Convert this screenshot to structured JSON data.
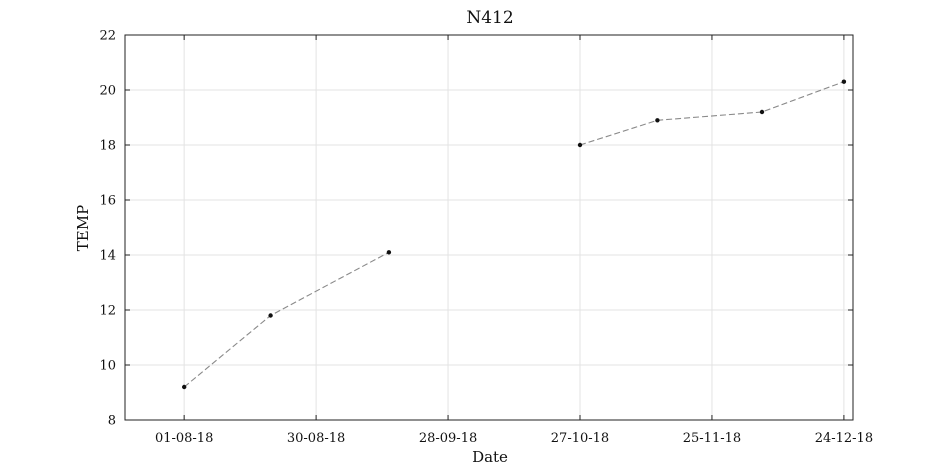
{
  "chart_data": {
    "type": "line",
    "title": "N412",
    "xlabel": "Date",
    "ylabel": "TEMP",
    "x_ticks": [
      "01-08-18",
      "30-08-18",
      "28-09-18",
      "27-10-18",
      "25-11-18",
      "24-12-18"
    ],
    "x_tick_dates": [
      "2018-08-01",
      "2018-08-30",
      "2018-09-28",
      "2018-10-27",
      "2018-11-25",
      "2018-12-24"
    ],
    "y_ticks": [
      8,
      10,
      12,
      14,
      16,
      18,
      20,
      22
    ],
    "xlim": [
      "2018-07-19",
      "2018-12-26"
    ],
    "ylim": [
      8,
      22
    ],
    "grid": true,
    "line_style": "dashed",
    "line_color": "#8a8a8a",
    "marker_color": "#111111",
    "segments": [
      {
        "points": [
          {
            "x": "2018-08-01",
            "y": 9.2
          },
          {
            "x": "2018-08-20",
            "y": 11.8
          },
          {
            "x": "2018-09-15",
            "y": 14.1
          }
        ]
      },
      {
        "points": [
          {
            "x": "2018-10-27",
            "y": 18.0
          },
          {
            "x": "2018-11-13",
            "y": 18.9
          },
          {
            "x": "2018-12-06",
            "y": 19.2
          },
          {
            "x": "2018-12-24",
            "y": 20.3
          }
        ]
      }
    ]
  }
}
